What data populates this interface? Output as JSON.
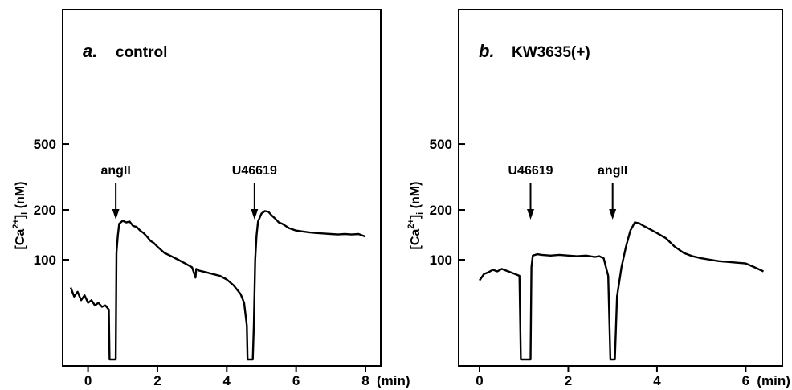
{
  "chart_data": [
    {
      "type": "line",
      "panel_label": "a.",
      "title": "control",
      "ylabel": "[Ca2+]i (nM)",
      "x_unit": "(min)",
      "x_ticks": [
        0,
        2,
        4,
        6,
        8
      ],
      "y_ticks": [
        100,
        200,
        500
      ],
      "y_scale": "log",
      "annotations": [
        {
          "label": "angII",
          "x": 0.8
        },
        {
          "label": "U46619",
          "x": 4.8
        }
      ],
      "series": [
        {
          "x": [
            -0.5,
            -0.4,
            -0.3,
            -0.2,
            -0.1,
            0.0,
            0.1,
            0.2,
            0.3,
            0.4,
            0.5,
            0.6,
            0.62,
            0.64,
            0.8,
            0.82,
            0.86,
            0.9,
            1.0,
            1.1,
            1.2,
            1.3,
            1.4,
            1.5,
            1.6,
            1.7,
            1.8,
            1.9,
            2.0,
            2.2,
            2.4,
            2.6,
            2.8,
            3.0,
            3.1,
            3.12,
            3.2,
            3.4,
            3.6,
            3.8,
            4.0,
            4.2,
            4.4,
            4.5,
            4.58,
            4.6,
            4.75,
            4.78,
            4.82,
            4.86,
            4.9,
            5.0,
            5.1,
            5.2,
            5.3,
            5.4,
            5.5,
            5.6,
            5.7,
            5.8,
            6.0,
            6.2,
            6.4,
            6.6,
            6.8,
            7.0,
            7.2,
            7.4,
            7.6,
            7.8,
            8.0
          ],
          "y": [
            68,
            60,
            64,
            57,
            61,
            55,
            57,
            53,
            55,
            52,
            53,
            50,
            25,
            25,
            25,
            110,
            140,
            165,
            172,
            168,
            170,
            160,
            158,
            150,
            145,
            138,
            130,
            126,
            120,
            110,
            105,
            100,
            95,
            90,
            78,
            88,
            86,
            84,
            82,
            80,
            76,
            70,
            62,
            55,
            40,
            25,
            25,
            40,
            100,
            140,
            170,
            190,
            197,
            195,
            185,
            177,
            168,
            165,
            160,
            155,
            150,
            148,
            146,
            145,
            144,
            143,
            142,
            143,
            142,
            143,
            138
          ]
        }
      ]
    },
    {
      "type": "line",
      "panel_label": "b.",
      "title": "KW3635(+)",
      "ylabel": "[Ca2+]i (nM)",
      "x_unit": "(min)",
      "x_ticks": [
        0,
        2,
        4,
        6
      ],
      "y_ticks": [
        100,
        200,
        500
      ],
      "y_scale": "log",
      "annotations": [
        {
          "label": "U46619",
          "x": 1.15
        },
        {
          "label": "angII",
          "x": 3.0
        }
      ],
      "series": [
        {
          "x": [
            0.0,
            0.1,
            0.2,
            0.3,
            0.4,
            0.5,
            0.6,
            0.7,
            0.8,
            0.9,
            0.93,
            0.95,
            1.15,
            1.17,
            1.2,
            1.3,
            1.4,
            1.6,
            1.8,
            2.0,
            2.2,
            2.4,
            2.6,
            2.7,
            2.8,
            2.85,
            2.9,
            2.95,
            3.05,
            3.1,
            3.2,
            3.3,
            3.4,
            3.5,
            3.6,
            3.7,
            3.8,
            4.0,
            4.2,
            4.4,
            4.6,
            4.8,
            5.0,
            5.2,
            5.4,
            5.6,
            5.8,
            6.0,
            6.2,
            6.4
          ],
          "y": [
            75,
            82,
            84,
            87,
            85,
            88,
            86,
            84,
            82,
            80,
            25,
            25,
            25,
            90,
            106,
            108,
            107,
            106,
            107,
            106,
            105,
            106,
            104,
            105,
            102,
            90,
            80,
            25,
            25,
            60,
            90,
            120,
            150,
            168,
            166,
            160,
            155,
            145,
            135,
            120,
            110,
            105,
            102,
            100,
            98,
            97,
            96,
            95,
            90,
            85
          ]
        }
      ]
    }
  ]
}
